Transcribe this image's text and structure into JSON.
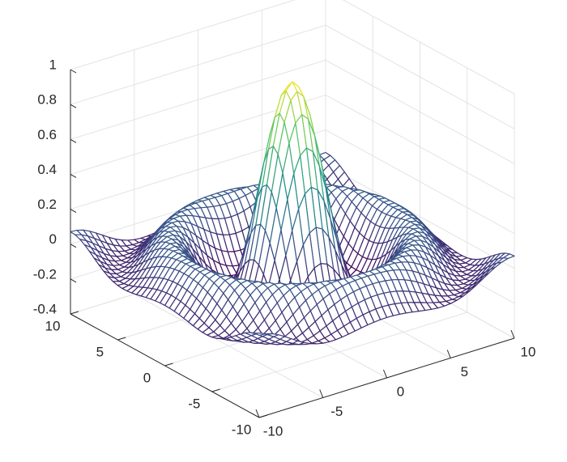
{
  "chart_data": {
    "type": "surface-mesh",
    "title": "",
    "xlabel": "",
    "ylabel": "",
    "zlabel": "",
    "function": "sin(sqrt(x^2 + y^2)) / sqrt(x^2 + y^2)",
    "xlim": [
      -10,
      10
    ],
    "ylim": [
      -10,
      10
    ],
    "zlim": [
      -0.4,
      1
    ],
    "x_ticks": [
      "-10",
      "-5",
      "0",
      "5",
      "10"
    ],
    "y_ticks": [
      "-10",
      "-5",
      "0",
      "5",
      "10"
    ],
    "z_ticks": [
      "-0.4",
      "-0.2",
      "0",
      "0.2",
      "0.4",
      "0.6",
      "0.8",
      "1"
    ],
    "grid": true,
    "colormap": "viridis",
    "colormap_stops": [
      "#440154",
      "#3b528b",
      "#21918c",
      "#5ec962",
      "#fde725"
    ],
    "mesh_resolution": 40,
    "peak_value": 1.0,
    "trough_value": -0.2172
  }
}
